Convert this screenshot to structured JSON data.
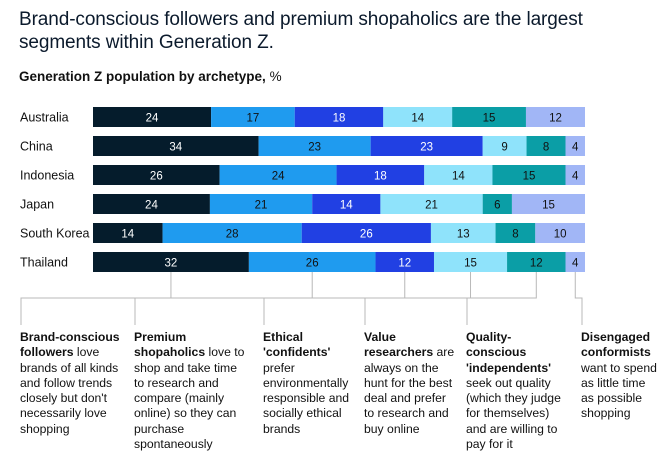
{
  "heading": "Brand-conscious followers and premium shopaholics are the largest segments within Generation Z.",
  "chart_title": "Generation Z population by archetype,",
  "chart_unit": "%",
  "colors": [
    "#051c2c",
    "#1f9bef",
    "#2140e3",
    "#8fe3fb",
    "#0b9ea6",
    "#a1b6f6"
  ],
  "chart_data": {
    "type": "bar",
    "orientation": "horizontal",
    "stacked": true,
    "title": "Generation Z population by archetype, %",
    "categories": [
      "Australia",
      "China",
      "Indonesia",
      "Japan",
      "South Korea",
      "Thailand"
    ],
    "series": [
      {
        "name": "Brand-conscious followers",
        "values": [
          24,
          34,
          26,
          24,
          14,
          32
        ]
      },
      {
        "name": "Premium shopaholics",
        "values": [
          17,
          23,
          24,
          21,
          28,
          26
        ]
      },
      {
        "name": "Ethical 'confidents'",
        "values": [
          18,
          23,
          18,
          14,
          26,
          12
        ]
      },
      {
        "name": "Value researchers",
        "values": [
          14,
          9,
          14,
          21,
          13,
          15
        ]
      },
      {
        "name": "Quality-conscious 'independents'",
        "values": [
          15,
          8,
          15,
          6,
          8,
          12
        ]
      },
      {
        "name": "Disengaged conformists",
        "values": [
          12,
          4,
          4,
          15,
          10,
          4
        ]
      }
    ],
    "xlim": [
      0,
      100
    ],
    "grid": false,
    "legend": "bottom"
  },
  "legend": [
    {
      "name": "Brand-conscious followers",
      "desc": "love brands of all kinds and follow trends closely but don't necessarily love shopping"
    },
    {
      "name": "Premium shopaholics",
      "desc": "love to shop and take time to research and compare (mainly online) so they can purchase spontaneously"
    },
    {
      "name": "Ethical 'confidents'",
      "desc": "prefer environmentally responsible and socially ethical brands"
    },
    {
      "name": "Value researchers",
      "desc": "are always on the hunt for the best deal and prefer to research and buy online"
    },
    {
      "name": "Quality-conscious 'independents'",
      "desc": "seek out quality (which they judge for themselves) and are willing to pay for it"
    },
    {
      "name": "Disengaged conformists",
      "desc": "want to spend as little time as possible shopping"
    }
  ]
}
